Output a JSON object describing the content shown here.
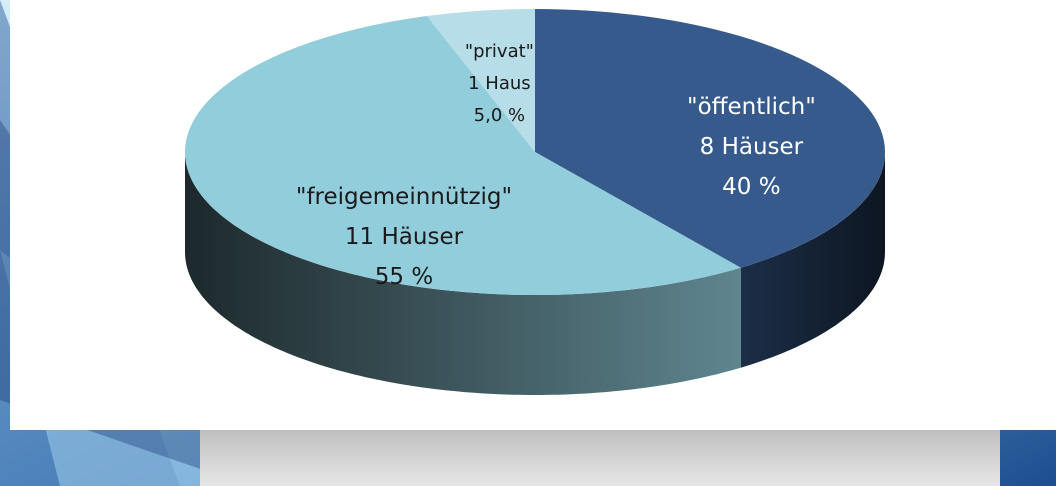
{
  "chart_data": {
    "type": "pie3d",
    "categories": [
      "\"öffentlich\"",
      "\"freigemeinnützig\"",
      "\"privat\""
    ],
    "count_labels": [
      "8 Häuser",
      "11 Häuser",
      "1 Haus"
    ],
    "values": [
      40,
      55,
      5
    ],
    "value_labels": [
      "40 %",
      "55 %",
      "5,0 %"
    ],
    "colors": [
      "#375a8c",
      "#92cddc",
      "#b7dde8"
    ]
  }
}
